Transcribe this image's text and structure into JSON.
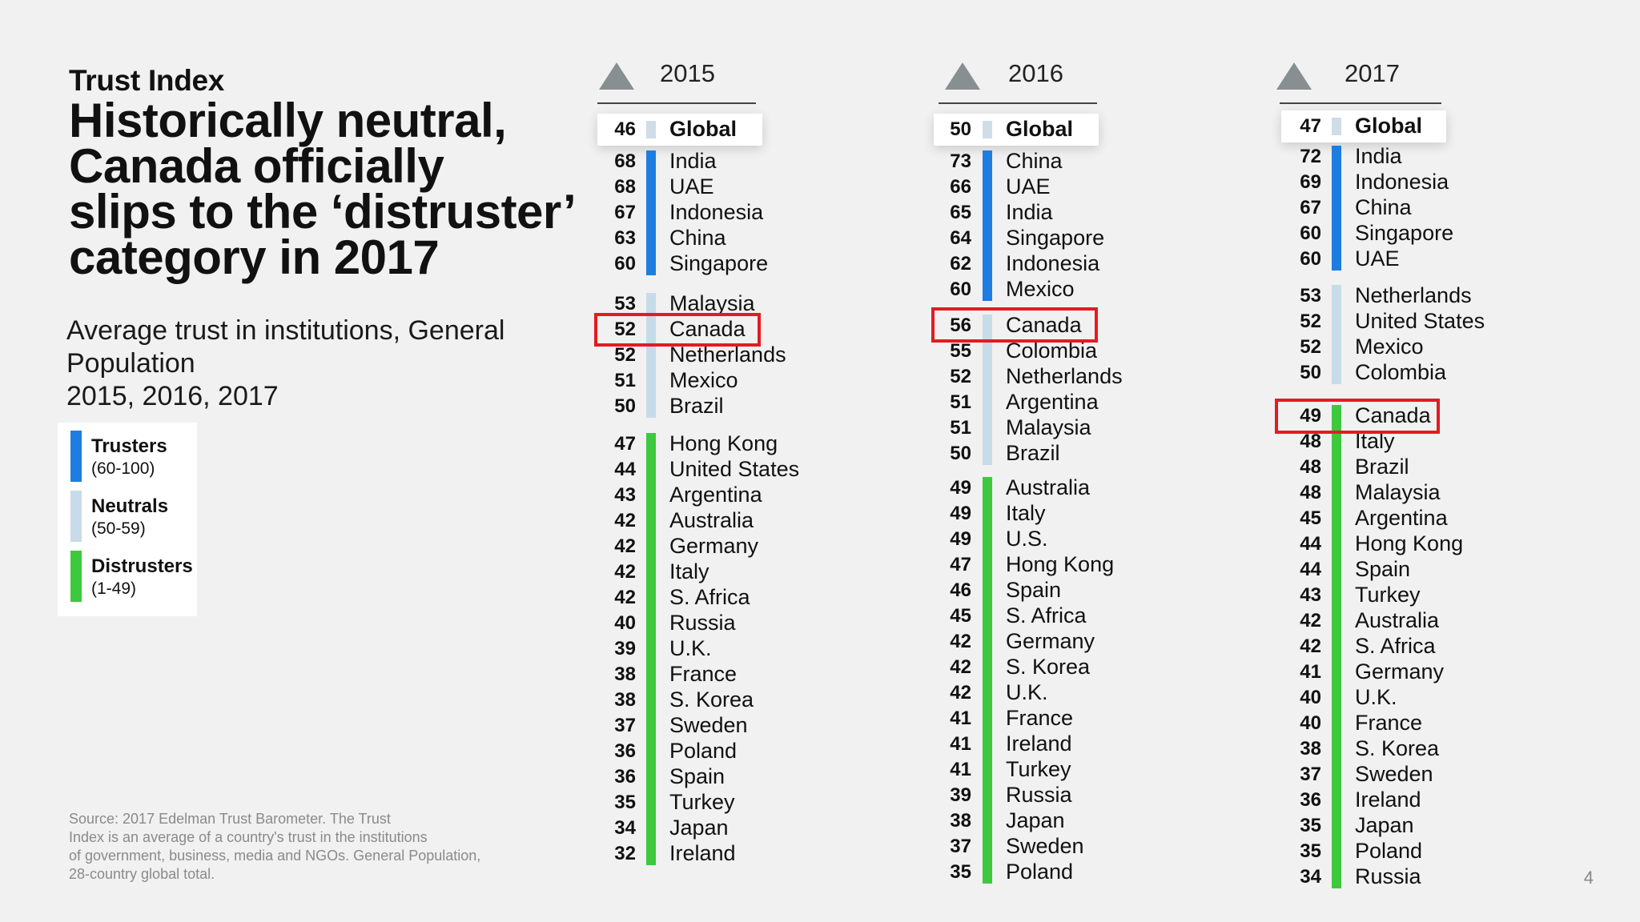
{
  "header": {
    "kicker": "Trust Index",
    "headline_lines": [
      "Historically neutral,",
      "Canada officially",
      "slips to the ‘distruster’",
      "category in 2017"
    ],
    "subtitle_lines": [
      "Average trust in institutions, General",
      "Population",
      "2015, 2016, 2017"
    ]
  },
  "legend": [
    {
      "name": "Trusters",
      "range": "(60-100)",
      "color": "#1e7de0"
    },
    {
      "name": "Neutrals",
      "range": "(50-59)",
      "color": "#c7dbe8"
    },
    {
      "name": "Distrusters",
      "range": "(1-49)",
      "color": "#3ec83e"
    }
  ],
  "source_lines": [
    "Source: 2017 Edelman Trust Barometer. The Trust",
    "Index is an average of a country's trust in the institutions",
    "of government, business, media and NGOs. General Population,",
    "28-country global total."
  ],
  "page_number": "4",
  "colors": {
    "truster": "#1e7de0",
    "neutral": "#c7dbe8",
    "distruster": "#3ec83e",
    "global": "#cfdde7",
    "highlight": "#e31b23",
    "triangle": "#888f93"
  },
  "chart_data": {
    "type": "table",
    "highlighted_country": "Canada",
    "columns": [
      {
        "year": "2015",
        "global": {
          "label": "Global",
          "value": 46
        },
        "rows": [
          {
            "value": 68,
            "label": "India",
            "category": "truster"
          },
          {
            "value": 68,
            "label": "UAE",
            "category": "truster"
          },
          {
            "value": 67,
            "label": "Indonesia",
            "category": "truster"
          },
          {
            "value": 63,
            "label": "China",
            "category": "truster"
          },
          {
            "value": 60,
            "label": "Singapore",
            "category": "truster"
          },
          {
            "value": 53,
            "label": "Malaysia",
            "category": "neutral"
          },
          {
            "value": 52,
            "label": "Canada",
            "category": "neutral"
          },
          {
            "value": 52,
            "label": "Netherlands",
            "category": "neutral"
          },
          {
            "value": 51,
            "label": "Mexico",
            "category": "neutral"
          },
          {
            "value": 50,
            "label": "Brazil",
            "category": "neutral"
          },
          {
            "value": 47,
            "label": "Hong Kong",
            "category": "distruster"
          },
          {
            "value": 44,
            "label": "United States",
            "category": "distruster"
          },
          {
            "value": 43,
            "label": "Argentina",
            "category": "distruster"
          },
          {
            "value": 42,
            "label": "Australia",
            "category": "distruster"
          },
          {
            "value": 42,
            "label": "Germany",
            "category": "distruster"
          },
          {
            "value": 42,
            "label": "Italy",
            "category": "distruster"
          },
          {
            "value": 42,
            "label": "S. Africa",
            "category": "distruster"
          },
          {
            "value": 40,
            "label": "Russia",
            "category": "distruster"
          },
          {
            "value": 39,
            "label": "U.K.",
            "category": "distruster"
          },
          {
            "value": 38,
            "label": "France",
            "category": "distruster"
          },
          {
            "value": 38,
            "label": "S. Korea",
            "category": "distruster"
          },
          {
            "value": 37,
            "label": "Sweden",
            "category": "distruster"
          },
          {
            "value": 36,
            "label": "Poland",
            "category": "distruster"
          },
          {
            "value": 36,
            "label": "Spain",
            "category": "distruster"
          },
          {
            "value": 35,
            "label": "Turkey",
            "category": "distruster"
          },
          {
            "value": 34,
            "label": "Japan",
            "category": "distruster"
          },
          {
            "value": 32,
            "label": "Ireland",
            "category": "distruster"
          }
        ]
      },
      {
        "year": "2016",
        "global": {
          "label": "Global",
          "value": 50
        },
        "rows": [
          {
            "value": 73,
            "label": "China",
            "category": "truster"
          },
          {
            "value": 66,
            "label": "UAE",
            "category": "truster"
          },
          {
            "value": 65,
            "label": "India",
            "category": "truster"
          },
          {
            "value": 64,
            "label": "Singapore",
            "category": "truster"
          },
          {
            "value": 62,
            "label": "Indonesia",
            "category": "truster"
          },
          {
            "value": 60,
            "label": "Mexico",
            "category": "truster"
          },
          {
            "value": 56,
            "label": "Canada",
            "category": "neutral"
          },
          {
            "value": 55,
            "label": "Colombia",
            "category": "neutral"
          },
          {
            "value": 52,
            "label": "Netherlands",
            "category": "neutral"
          },
          {
            "value": 51,
            "label": "Argentina",
            "category": "neutral"
          },
          {
            "value": 51,
            "label": "Malaysia",
            "category": "neutral"
          },
          {
            "value": 50,
            "label": "Brazil",
            "category": "neutral"
          },
          {
            "value": 49,
            "label": "Australia",
            "category": "distruster"
          },
          {
            "value": 49,
            "label": "Italy",
            "category": "distruster"
          },
          {
            "value": 49,
            "label": "U.S.",
            "category": "distruster"
          },
          {
            "value": 47,
            "label": "Hong Kong",
            "category": "distruster"
          },
          {
            "value": 46,
            "label": "Spain",
            "category": "distruster"
          },
          {
            "value": 45,
            "label": "S. Africa",
            "category": "distruster"
          },
          {
            "value": 42,
            "label": "Germany",
            "category": "distruster"
          },
          {
            "value": 42,
            "label": "S. Korea",
            "category": "distruster"
          },
          {
            "value": 42,
            "label": "U.K.",
            "category": "distruster"
          },
          {
            "value": 41,
            "label": "France",
            "category": "distruster"
          },
          {
            "value": 41,
            "label": "Ireland",
            "category": "distruster"
          },
          {
            "value": 41,
            "label": "Turkey",
            "category": "distruster"
          },
          {
            "value": 39,
            "label": "Russia",
            "category": "distruster"
          },
          {
            "value": 38,
            "label": "Japan",
            "category": "distruster"
          },
          {
            "value": 37,
            "label": "Sweden",
            "category": "distruster"
          },
          {
            "value": 35,
            "label": "Poland",
            "category": "distruster"
          }
        ]
      },
      {
        "year": "2017",
        "global": {
          "label": "Global",
          "value": 47
        },
        "rows": [
          {
            "value": 72,
            "label": "India",
            "category": "truster"
          },
          {
            "value": 69,
            "label": "Indonesia",
            "category": "truster"
          },
          {
            "value": 67,
            "label": "China",
            "category": "truster"
          },
          {
            "value": 60,
            "label": "Singapore",
            "category": "truster"
          },
          {
            "value": 60,
            "label": "UAE",
            "category": "truster"
          },
          {
            "value": 53,
            "label": "Netherlands",
            "category": "neutral"
          },
          {
            "value": 52,
            "label": "United States",
            "category": "neutral"
          },
          {
            "value": 52,
            "label": "Mexico",
            "category": "neutral"
          },
          {
            "value": 50,
            "label": "Colombia",
            "category": "neutral"
          },
          {
            "value": 49,
            "label": "Canada",
            "category": "distruster"
          },
          {
            "value": 48,
            "label": "Italy",
            "category": "distruster"
          },
          {
            "value": 48,
            "label": "Brazil",
            "category": "distruster"
          },
          {
            "value": 48,
            "label": "Malaysia",
            "category": "distruster"
          },
          {
            "value": 45,
            "label": "Argentina",
            "category": "distruster"
          },
          {
            "value": 44,
            "label": "Hong Kong",
            "category": "distruster"
          },
          {
            "value": 44,
            "label": "Spain",
            "category": "distruster"
          },
          {
            "value": 43,
            "label": "Turkey",
            "category": "distruster"
          },
          {
            "value": 42,
            "label": "Australia",
            "category": "distruster"
          },
          {
            "value": 42,
            "label": "S. Africa",
            "category": "distruster"
          },
          {
            "value": 41,
            "label": "Germany",
            "category": "distruster"
          },
          {
            "value": 40,
            "label": "U.K.",
            "category": "distruster"
          },
          {
            "value": 40,
            "label": "France",
            "category": "distruster"
          },
          {
            "value": 38,
            "label": "S. Korea",
            "category": "distruster"
          },
          {
            "value": 37,
            "label": "Sweden",
            "category": "distruster"
          },
          {
            "value": 36,
            "label": "Ireland",
            "category": "distruster"
          },
          {
            "value": 35,
            "label": "Japan",
            "category": "distruster"
          },
          {
            "value": 35,
            "label": "Poland",
            "category": "distruster"
          },
          {
            "value": 34,
            "label": "Russia",
            "category": "distruster"
          }
        ]
      }
    ]
  }
}
